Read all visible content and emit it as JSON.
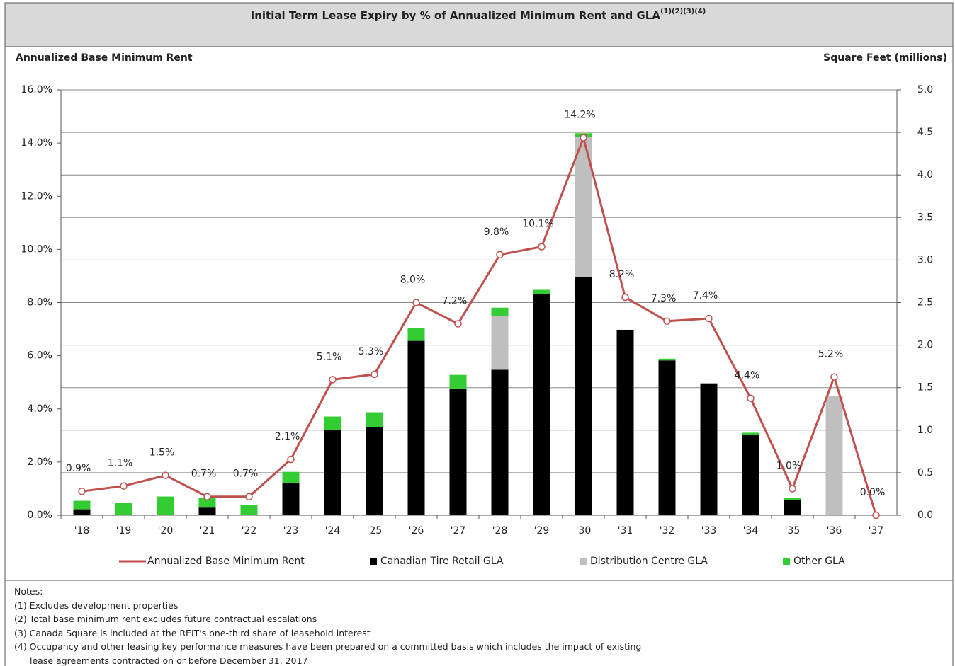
{
  "chart_data": {
    "type": "bar",
    "title": "Initial Term Lease Expiry by % of Annualized Minimum Rent and GLA",
    "title_superscript": "(1)(2)(3)(4)",
    "y_label": "Annualized Base Minimum Rent",
    "y2_label": "Square Feet (millions)",
    "categories": [
      "'18",
      "'19",
      "'20",
      "'21",
      "'22",
      "'23",
      "'24",
      "'25",
      "'26",
      "'27",
      "'28",
      "'29",
      "'30",
      "'31",
      "'32",
      "'33",
      "'34",
      "'35",
      "'36",
      "'37"
    ],
    "ylim": [
      0,
      16
    ],
    "yticks": [
      {
        "value": 0,
        "label": "0.0%"
      },
      {
        "value": 2,
        "label": "2.0%"
      },
      {
        "value": 4,
        "label": "4.0%"
      },
      {
        "value": 6,
        "label": "6.0%"
      },
      {
        "value": 8,
        "label": "8.0%"
      },
      {
        "value": 10,
        "label": "10.0%"
      },
      {
        "value": 12,
        "label": "12.0%"
      },
      {
        "value": 14,
        "label": "14.0%"
      },
      {
        "value": 16,
        "label": "16.0%"
      }
    ],
    "y2lim": [
      0,
      5
    ],
    "y2ticks": [
      {
        "value": 0,
        "label": "0.0"
      },
      0.5,
      {
        "value": 1,
        "label": "1.0"
      },
      1.5,
      {
        "value": 2,
        "label": "2.0"
      },
      2.5,
      {
        "value": 3,
        "label": "3.0"
      },
      3.5,
      {
        "value": 4,
        "label": "4.0"
      },
      4.5,
      {
        "value": 5,
        "label": "5.0"
      }
    ],
    "grid": "y2",
    "stacked": true,
    "series": [
      {
        "name": "Annualized Base Minimum Rent",
        "type": "line",
        "axis": "y",
        "color": "#c0504d",
        "values": [
          0.9,
          1.1,
          1.5,
          0.7,
          0.7,
          2.1,
          5.1,
          5.3,
          8.0,
          7.2,
          9.8,
          10.1,
          14.2,
          8.2,
          7.3,
          7.4,
          4.4,
          1.0,
          5.2,
          0.0
        ],
        "value_labels": [
          "0.9%",
          "1.1%",
          "1.5%",
          "0.7%",
          "0.7%",
          "2.1%",
          "5.1%",
          "5.3%",
          "8.0%",
          "7.2%",
          "9.8%",
          "10.1%",
          "14.2%",
          "8.2%",
          "7.3%",
          "7.4%",
          "4.4%",
          "1.0%",
          "5.2%",
          "0.0%"
        ]
      },
      {
        "name": "Canadian Tire Retail GLA",
        "type": "bar",
        "axis": "y2",
        "color": "#000000",
        "values": [
          0.07,
          0,
          0,
          0.09,
          0,
          0.38,
          1.0,
          1.04,
          2.05,
          1.49,
          1.71,
          2.6,
          2.8,
          2.18,
          1.82,
          1.55,
          0.94,
          0.18,
          0,
          0
        ]
      },
      {
        "name": "Distribution Centre GLA",
        "type": "bar",
        "axis": "y2",
        "color": "#bfbfbf",
        "values": [
          0,
          0,
          0,
          0,
          0,
          0,
          0,
          0,
          0,
          0,
          0.63,
          0,
          1.65,
          0,
          0,
          0,
          0,
          0,
          1.4,
          0
        ]
      },
      {
        "name": "Other GLA",
        "type": "bar",
        "axis": "y2",
        "color": "#33cc33",
        "values": [
          0.1,
          0.15,
          0.22,
          0.11,
          0.12,
          0.13,
          0.16,
          0.17,
          0.15,
          0.16,
          0.1,
          0.05,
          0.04,
          0,
          0.02,
          0,
          0.03,
          0.02,
          0,
          0
        ]
      }
    ]
  },
  "notes": {
    "heading": "Notes:",
    "items": [
      "(1) Excludes development properties",
      "(2) Total base minimum rent excludes future contractual escalations",
      "(3) Canada Square is included at the REIT's one-third share of leasehold interest",
      "(4) Occupancy and other leasing key performance measures have been prepared on a committed basis which includes the impact of existing",
      "lease agreements contracted on or before December 31, 2017"
    ]
  }
}
